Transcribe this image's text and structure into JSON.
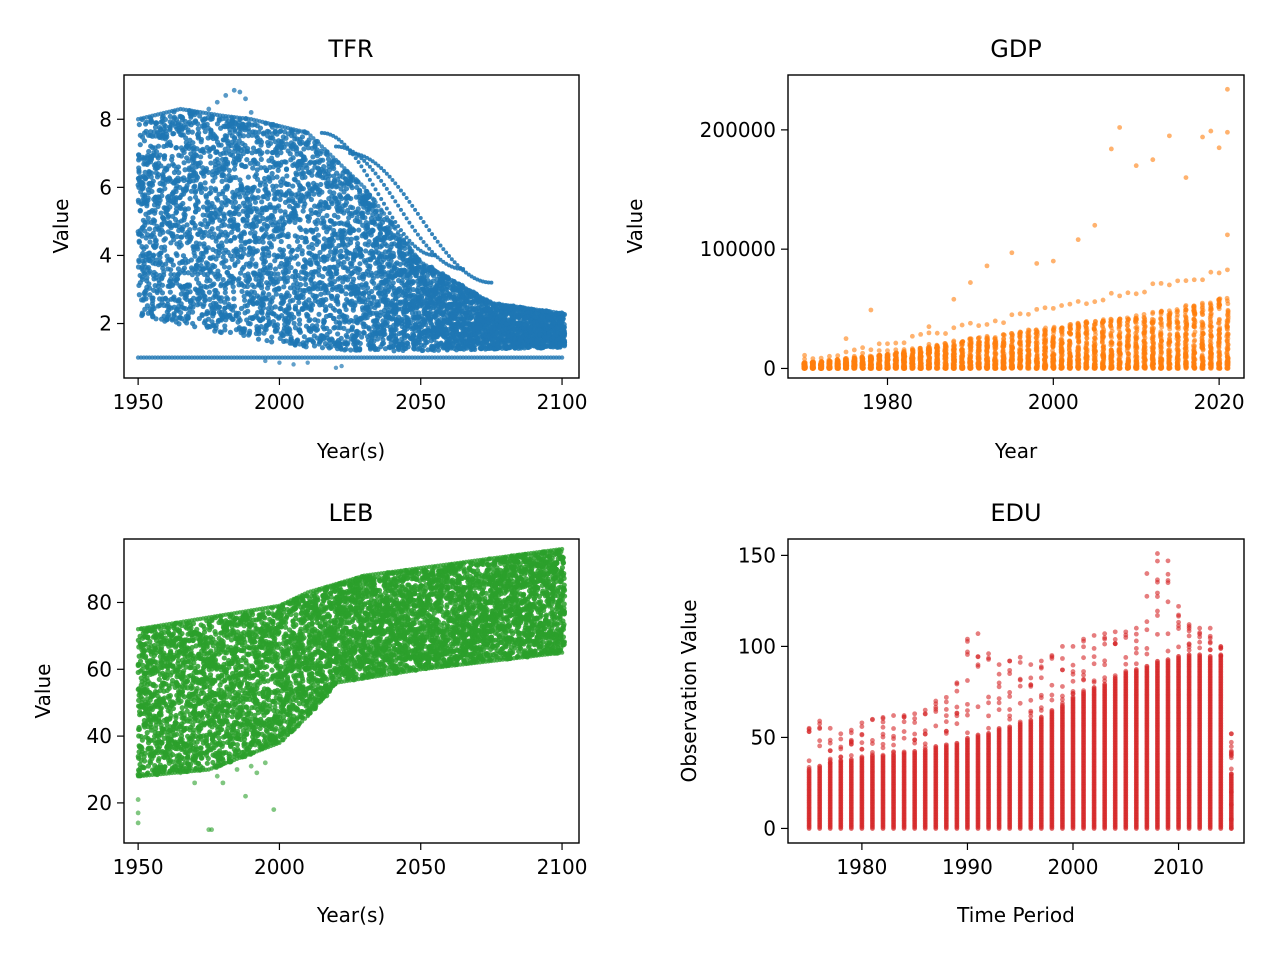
{
  "chart_data": [
    {
      "type": "scatter",
      "title": "TFR",
      "xlabel": "Year(s)",
      "ylabel": "Value",
      "xlim": [
        1945,
        2106
      ],
      "ylim": [
        0.4,
        9.3
      ],
      "xticks": [
        1950,
        2000,
        2050,
        2100
      ],
      "yticks": [
        2,
        4,
        6,
        8
      ],
      "color": "#1f77b4",
      "grid": false,
      "x_range": [
        1950,
        2100
      ],
      "y_range": [
        0.7,
        8.9
      ],
      "outline": [
        [
          1950,
          8.0
        ],
        [
          1965,
          8.3
        ],
        [
          1985,
          8.9
        ],
        [
          1990,
          8.1
        ],
        [
          2010,
          7.7
        ],
        [
          2030,
          6.0
        ],
        [
          2050,
          3.8
        ],
        [
          2075,
          2.6
        ],
        [
          2100,
          2.3
        ],
        [
          2100,
          1.0
        ],
        [
          2020,
          0.7
        ],
        [
          1995,
          0.9
        ],
        [
          1950,
          1.0
        ]
      ],
      "lower_line": 1.0
    },
    {
      "type": "scatter",
      "title": "GDP",
      "xlabel": "Year",
      "ylabel": "Value",
      "xlim": [
        1968,
        2023
      ],
      "ylim": [
        -8000,
        246000
      ],
      "xticks": [
        1980,
        2000,
        2020
      ],
      "yticks": [
        0,
        100000,
        200000
      ],
      "color": "#ff7f0e",
      "grid": false,
      "x_range": [
        1970,
        2021
      ],
      "y_range": [
        0,
        234000
      ],
      "dense_upper": [
        [
          1970,
          5000
        ],
        [
          1980,
          12000
        ],
        [
          1990,
          25000
        ],
        [
          2000,
          35000
        ],
        [
          2010,
          45000
        ],
        [
          2021,
          60000
        ]
      ],
      "outliers": [
        [
          1970,
          11000
        ],
        [
          1975,
          25000
        ],
        [
          1978,
          49000
        ],
        [
          1985,
          35000
        ],
        [
          1988,
          58000
        ],
        [
          1990,
          72000
        ],
        [
          1992,
          86000
        ],
        [
          1995,
          97000
        ],
        [
          1998,
          88000
        ],
        [
          2000,
          90000
        ],
        [
          2003,
          108000
        ],
        [
          2005,
          120000
        ],
        [
          2007,
          184000
        ],
        [
          2008,
          202000
        ],
        [
          2010,
          170000
        ],
        [
          2012,
          175000
        ],
        [
          2014,
          195000
        ],
        [
          2016,
          160000
        ],
        [
          2018,
          194000
        ],
        [
          2019,
          199000
        ],
        [
          2020,
          185000
        ],
        [
          2021,
          234000
        ],
        [
          2021,
          198000
        ],
        [
          2021,
          112000
        ]
      ]
    },
    {
      "type": "scatter",
      "title": "LEB",
      "xlabel": "Year(s)",
      "ylabel": "Value",
      "xlim": [
        1945,
        2106
      ],
      "ylim": [
        8,
        99
      ],
      "xticks": [
        1950,
        2000,
        2050,
        2100
      ],
      "yticks": [
        20,
        40,
        60,
        80
      ],
      "color": "#2ca02c",
      "grid": false,
      "x_range": [
        1950,
        2100
      ],
      "y_range": [
        12,
        96
      ],
      "outline": [
        [
          1950,
          72
        ],
        [
          2000,
          79
        ],
        [
          2010,
          83
        ],
        [
          2030,
          88
        ],
        [
          2100,
          96
        ],
        [
          2100,
          65
        ],
        [
          2050,
          60
        ],
        [
          2020,
          54
        ],
        [
          2010,
          42
        ],
        [
          2000,
          38
        ],
        [
          1975,
          30
        ],
        [
          1950,
          28
        ]
      ],
      "outliers": [
        [
          1950,
          21
        ],
        [
          1950,
          17
        ],
        [
          1950,
          14
        ],
        [
          1965,
          29
        ],
        [
          1970,
          26
        ],
        [
          1975,
          12
        ],
        [
          1976,
          12
        ],
        [
          1978,
          28
        ],
        [
          1980,
          26
        ],
        [
          1985,
          30
        ],
        [
          1988,
          22
        ],
        [
          1990,
          31
        ],
        [
          1992,
          29
        ],
        [
          1995,
          32
        ],
        [
          1998,
          18
        ],
        [
          1985,
          40
        ],
        [
          1990,
          38
        ]
      ]
    },
    {
      "type": "scatter",
      "title": "EDU",
      "xlabel": "Time Period",
      "ylabel": "Observation Value",
      "xlim": [
        1973,
        2016.2
      ],
      "ylim": [
        -8,
        159
      ],
      "xticks": [
        1980,
        1990,
        2000,
        2010
      ],
      "yticks": [
        0,
        50,
        100,
        150
      ],
      "color": "#d62728",
      "grid": false,
      "years": [
        1975,
        1976,
        1977,
        1978,
        1979,
        1980,
        1981,
        1982,
        1983,
        1984,
        1985,
        1986,
        1987,
        1988,
        1989,
        1990,
        1991,
        1992,
        1993,
        1994,
        1995,
        1996,
        1997,
        1998,
        1999,
        2000,
        2001,
        2002,
        2003,
        2004,
        2005,
        2006,
        2007,
        2008,
        2009,
        2010,
        2011,
        2012,
        2013,
        2014,
        2015
      ],
      "column_top_dense": [
        33,
        35,
        36,
        37,
        38,
        39,
        40,
        40,
        41,
        42,
        43,
        44,
        45,
        46,
        47,
        50,
        52,
        53,
        55,
        56,
        58,
        60,
        62,
        65,
        68,
        72,
        75,
        78,
        80,
        83,
        86,
        88,
        90,
        92,
        93,
        95,
        96,
        96,
        95,
        94,
        30
      ],
      "column_max": [
        55,
        59,
        55,
        52,
        54,
        58,
        60,
        61,
        62,
        62,
        63,
        65,
        70,
        72,
        80,
        104,
        107,
        96,
        90,
        92,
        94,
        90,
        92,
        95,
        100,
        100,
        104,
        106,
        107,
        108,
        108,
        110,
        140,
        151,
        147,
        122,
        112,
        110,
        110,
        100,
        52
      ]
    }
  ]
}
